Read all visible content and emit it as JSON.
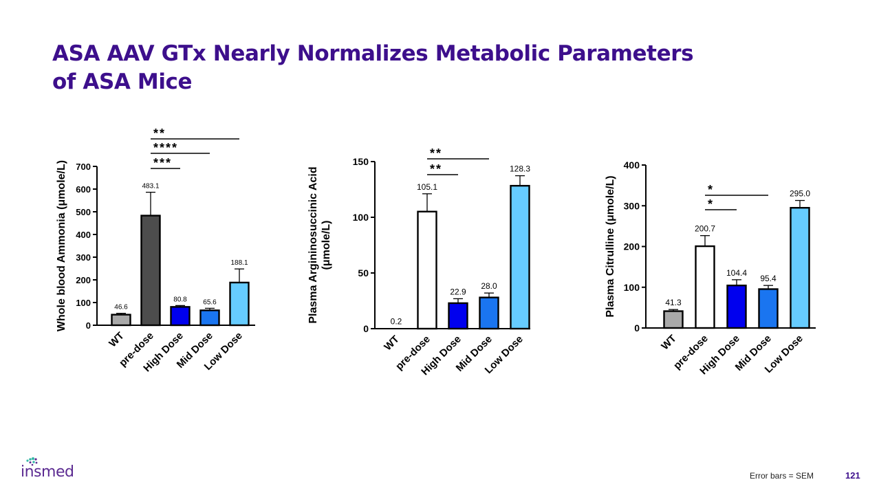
{
  "title_lines": [
    "ASA AAV GTx Nearly Normalizes Metabolic Parameters",
    "of ASA Mice"
  ],
  "chart_data": [
    {
      "type": "bar",
      "categories": [
        "WT",
        "pre-dose",
        "High Dose",
        "Mid Dose",
        "Low Dose"
      ],
      "values": [
        46.6,
        483.1,
        80.8,
        65.6,
        188.1
      ],
      "value_labels": [
        "46.6",
        "483.1",
        "80.8",
        "65.6",
        "188.1"
      ],
      "errors": [
        6,
        103,
        6,
        9,
        60
      ],
      "colors": [
        "#a9a9a9",
        "#4d4d4d",
        "#0000ee",
        "#1a75f0",
        "#66ccff"
      ],
      "ylabel": "Whole blood Ammonia (μmole/L)",
      "ylim": [
        0,
        700
      ],
      "yticks": [
        0,
        100,
        200,
        300,
        400,
        500,
        600,
        700
      ],
      "significance": [
        {
          "from": 1,
          "to": 2,
          "label": "***"
        },
        {
          "from": 1,
          "to": 3,
          "label": "****"
        },
        {
          "from": 1,
          "to": 4,
          "label": "**"
        }
      ]
    },
    {
      "type": "bar",
      "categories": [
        "WT",
        "pre-dose",
        "High Dose",
        "Mid Dose",
        "Low Dose"
      ],
      "values": [
        0.2,
        105.1,
        22.9,
        28.0,
        128.3
      ],
      "value_labels": [
        "0.2",
        "105.1",
        "22.9",
        "28.0",
        "128.3"
      ],
      "errors": [
        0,
        16,
        4,
        4,
        9
      ],
      "colors": [
        "#ffffff",
        "#ffffff",
        "#0000ee",
        "#1a75f0",
        "#66ccff"
      ],
      "ylabel": "Plasma Argininosuccinic Acid (μmole/L)",
      "ylim": [
        0,
        150
      ],
      "yticks": [
        0,
        50,
        100,
        150
      ],
      "significance": [
        {
          "from": 1,
          "to": 2,
          "label": "**"
        },
        {
          "from": 1,
          "to": 3,
          "label": "**"
        }
      ]
    },
    {
      "type": "bar",
      "categories": [
        "WT",
        "pre-dose",
        "High Dose",
        "Mid Dose",
        "Low Dose"
      ],
      "values": [
        41.3,
        200.7,
        104.4,
        95.4,
        295.0
      ],
      "value_labels": [
        "41.3",
        "200.7",
        "104.4",
        "95.4",
        "295.0"
      ],
      "errors": [
        4,
        26,
        14,
        9,
        18
      ],
      "colors": [
        "#a9a9a9",
        "#ffffff",
        "#0000ee",
        "#1a75f0",
        "#66ccff"
      ],
      "ylabel": "Plasma Citrulline (μmole/L)",
      "ylim": [
        0,
        400
      ],
      "yticks": [
        0,
        100,
        200,
        300,
        400
      ],
      "significance": [
        {
          "from": 1,
          "to": 2,
          "label": "*"
        },
        {
          "from": 1,
          "to": 3,
          "label": "*"
        }
      ]
    }
  ],
  "footer": {
    "logo_text": "insmed",
    "note": "Error bars = SEM",
    "page_number": "121"
  },
  "colors": {
    "title": "#3d0f8c",
    "logo": "#5b2a91",
    "logo_dots": "#35b7a6"
  }
}
